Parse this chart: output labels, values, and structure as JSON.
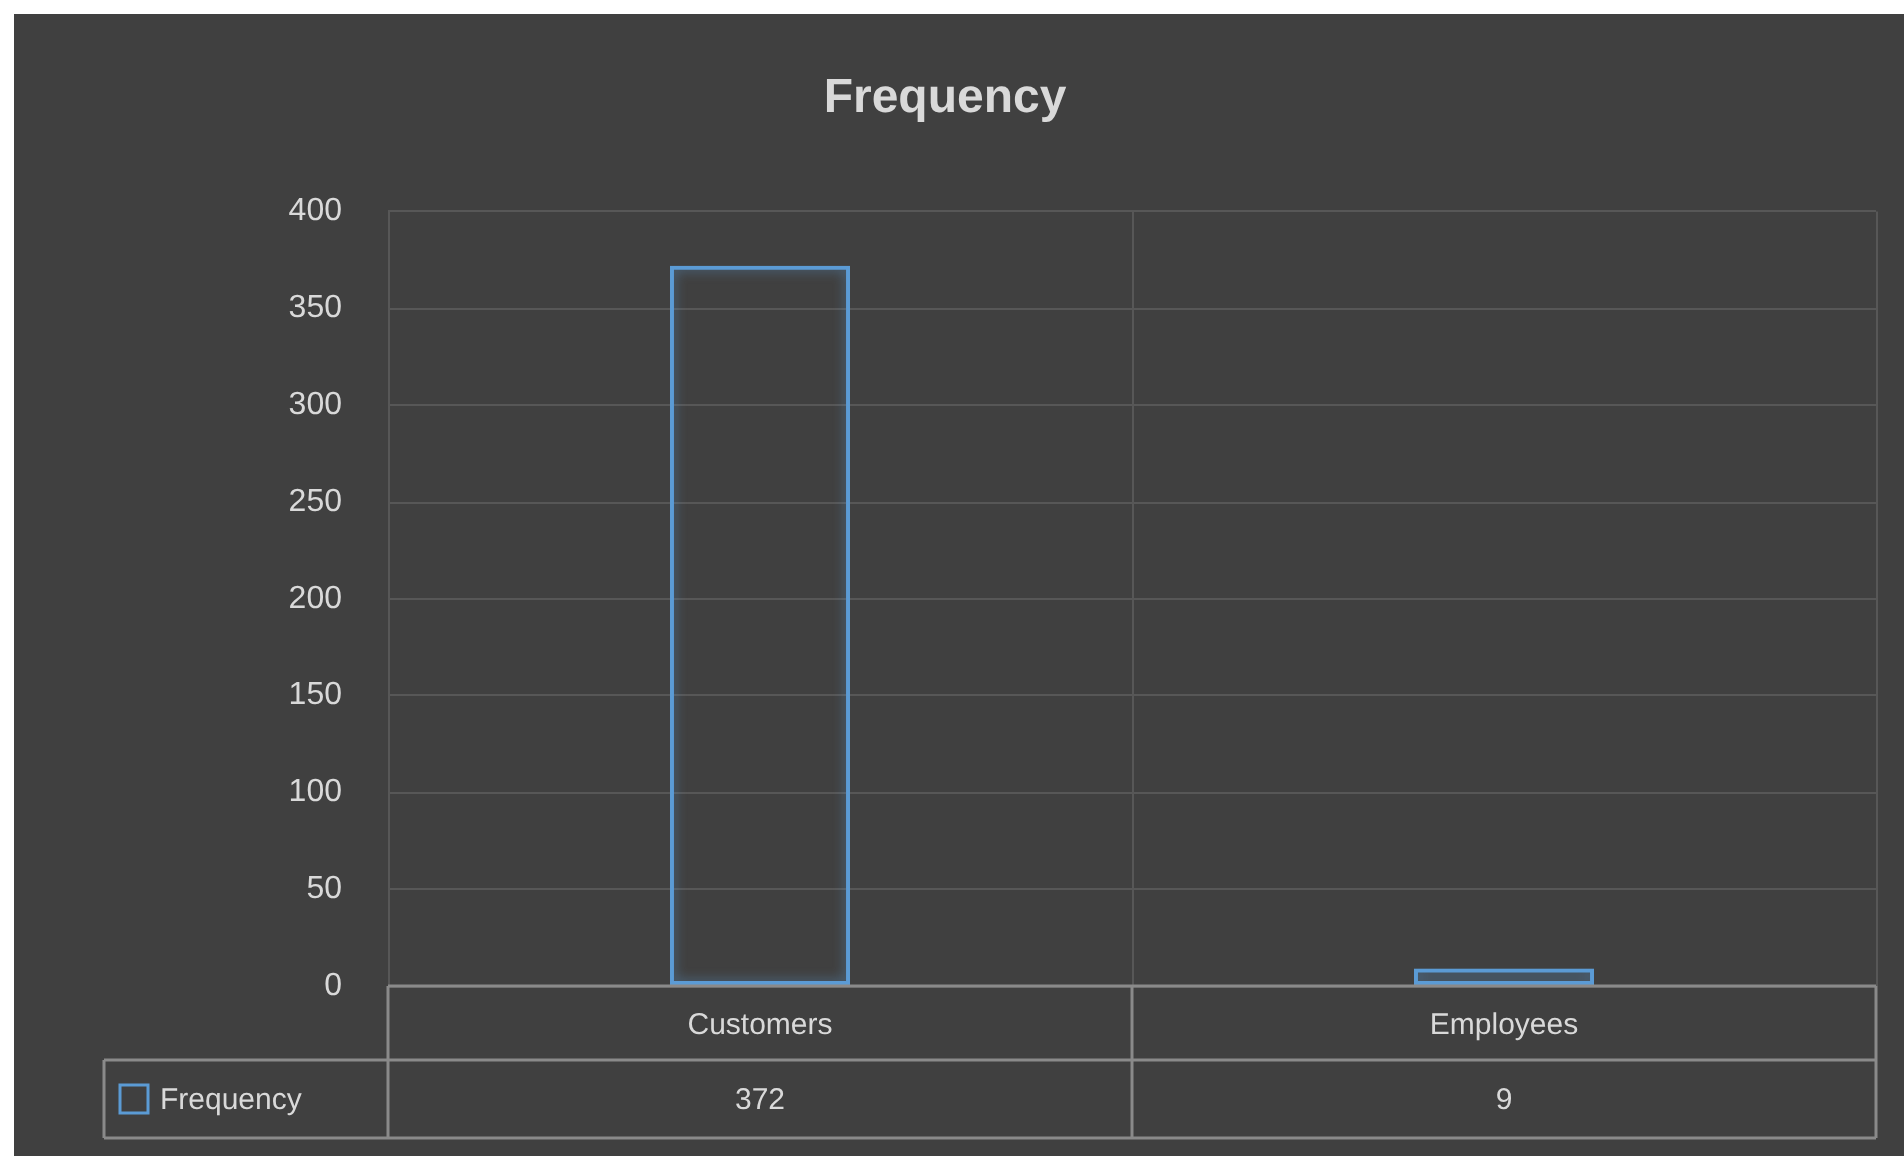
{
  "chart_data": {
    "type": "bar",
    "title": "Frequency",
    "categories": [
      "Customers",
      "Employees"
    ],
    "series": [
      {
        "name": "Frequency",
        "color": "#5b9bd5",
        "values": [
          372,
          9
        ]
      }
    ],
    "ylim": [
      0,
      400
    ],
    "yticks": [
      0,
      50,
      100,
      150,
      200,
      250,
      300,
      350,
      400
    ],
    "grid": true,
    "legend": "bottom",
    "data_labels": true
  }
}
